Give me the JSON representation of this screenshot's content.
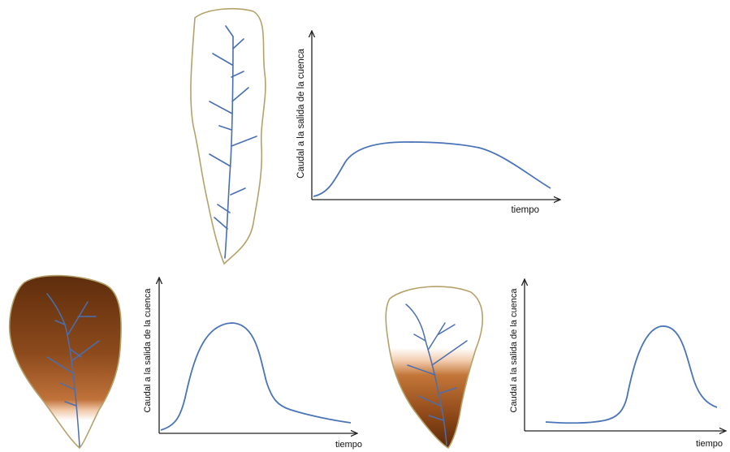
{
  "figure": {
    "y_label": "Caudal a la salida de la cuenca",
    "x_label": "tiempo",
    "colors": {
      "basin_outline": "#b5a26a",
      "river": "#4a6fb0",
      "hydrograph_line": "#4a74b8",
      "soil_dark": "#6b3410",
      "soil_light": "#c87a3c",
      "axis": "#222222"
    }
  }
}
